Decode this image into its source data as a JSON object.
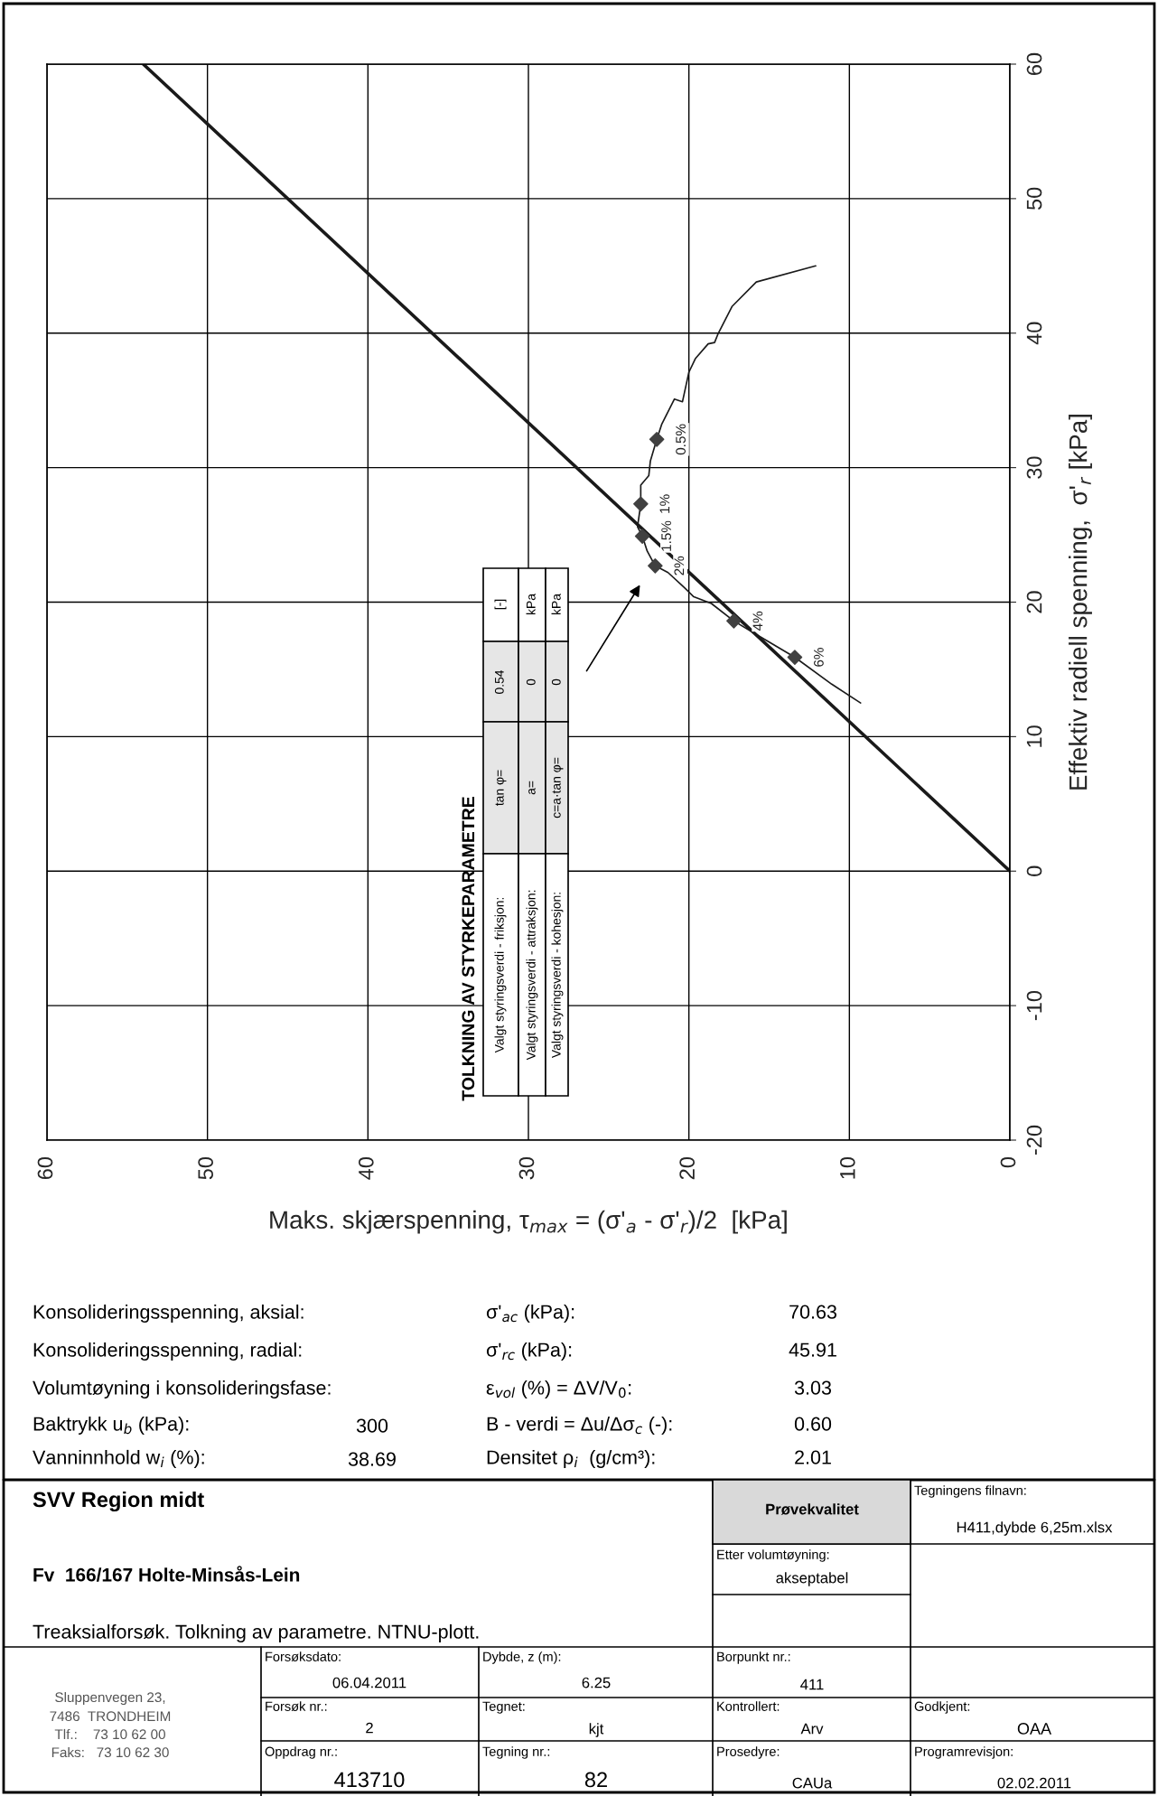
{
  "chart_data": {
    "type": "line",
    "xlabel": "Maks. skjærspenning, τ$_{max}$ = (σ'$_{a}$ - σ'$_{r}$)/2  [kPa]",
    "ylabel": "Effektiv radiell spenning,  σ'$_{r}$ [kPa]",
    "xlim": [
      60,
      0
    ],
    "ylim": [
      -20,
      60
    ],
    "xticks": [
      60,
      50,
      40,
      30,
      20,
      10,
      0
    ],
    "yticks": [
      -20,
      -10,
      0,
      10,
      20,
      30,
      40,
      50,
      60
    ],
    "grid": true,
    "legend": false,
    "series": [
      {
        "color": "#1a1a1a",
        "x": [
          0,
          54
        ],
        "values": [
          0,
          60
        ]
      },
      {
        "color": "#1a1a1a",
        "x": [
          12.1,
          15.8,
          17.3,
          18.2,
          18.4,
          18.8,
          19.6,
          20.0,
          20.4,
          20.9,
          21.7,
          22.0,
          22.4,
          22.5,
          23.0,
          23.0,
          23.2,
          22.9,
          22.6,
          22.1,
          21.3,
          20.3,
          19.7,
          18.6,
          17.2,
          15.8,
          13.4,
          11.1,
          9.3
        ],
        "values": [
          45.0,
          43.8,
          42.0,
          39.9,
          39.3,
          39.2,
          38.1,
          37.1,
          34.9,
          35.1,
          33.2,
          32.1,
          30.5,
          29.4,
          28.7,
          27.3,
          25.6,
          24.9,
          23.8,
          22.7,
          22.2,
          21.1,
          20.4,
          19.9,
          18.6,
          17.6,
          15.9,
          13.9,
          12.5
        ]
      },
      {
        "type": "scatter",
        "color": "#404040",
        "marker": "diamond",
        "x": [
          22.0,
          23.0,
          22.9,
          22.1,
          17.2,
          13.4
        ],
        "values": [
          32.1,
          27.3,
          24.9,
          22.7,
          18.6,
          15.9
        ]
      }
    ],
    "annotations": [
      "TOLKNING AV STYRKEPARAMETRE",
      "Valgt styringsverdi - friksjon:",
      "tan φ=",
      "0.54",
      "[-]",
      "Valgt styringsverdi - attraksjon:",
      "a=",
      "0",
      "kPa",
      "Valgt styringsverdi - kohesjon:",
      "c=a·tan φ=",
      "0",
      "kPa",
      "Konsolideringsspenning, aksial:",
      "σ'$_{ac}$ (kPa):",
      "70.63",
      "Konsolideringsspenning, radial:",
      "σ'$_{rc}$ (kPa):",
      "45.91",
      "Volumtøyning i konsolideringsfase:",
      "ε$_{vol}$ (%) = ΔV/V$_{0}$:",
      "3.03",
      "Baktrykk u$_{b}$ (kPa):",
      "300",
      "B - verdi = Δu/Δσ$_{c}$ (-):",
      "0.60",
      "Vanninnhold w$_{i}$ (%):",
      "38.69",
      "Densitet ρ$_{i}$  (g/cm³):",
      "2.01",
      "SVV Region midt",
      "Fv  166/167 Holte-Minsås-Lein",
      "Treaksialforsøk. Tolkning av parametre. NTNU-plott.",
      "Prøvekvalitet",
      "Tegningens filnavn:",
      "H411,dybde 6,25m.xlsx",
      "Etter volumtøyning:",
      "akseptabel",
      "Forsøksdato:",
      "06.04.2011",
      "Dybde, z (m):",
      "6.25",
      "Borpunkt nr.:",
      "411",
      "Forsøk nr.:",
      "2",
      "Tegnet:",
      "kjt",
      "Kontrollert:",
      "Arv",
      "Godkjent:",
      "OAA",
      "Oppdrag nr.:",
      "413710",
      "Tegning nr.:",
      "82",
      "Prosedyre:",
      "CAUa",
      "Programrevisjon:",
      "02.02.2011",
      "Sluppenvegen 23,",
      "7486  TRONDHEIM",
      "Tlf.:    73 10 62 00",
      "Faks:   73 10 62 30",
      {
        "text": "0.5%",
        "x": 22.0,
        "y": 32.1
      },
      {
        "text": "1%",
        "x": 23.0,
        "y": 27.3
      },
      {
        "text": "1.5%",
        "x": 22.9,
        "y": 24.9
      },
      {
        "text": "2%",
        "x": 22.1,
        "y": 22.7
      },
      {
        "text": "4%",
        "x": 17.2,
        "y": 18.6
      },
      {
        "text": "6%",
        "x": 13.4,
        "y": 15.9
      }
    ]
  }
}
